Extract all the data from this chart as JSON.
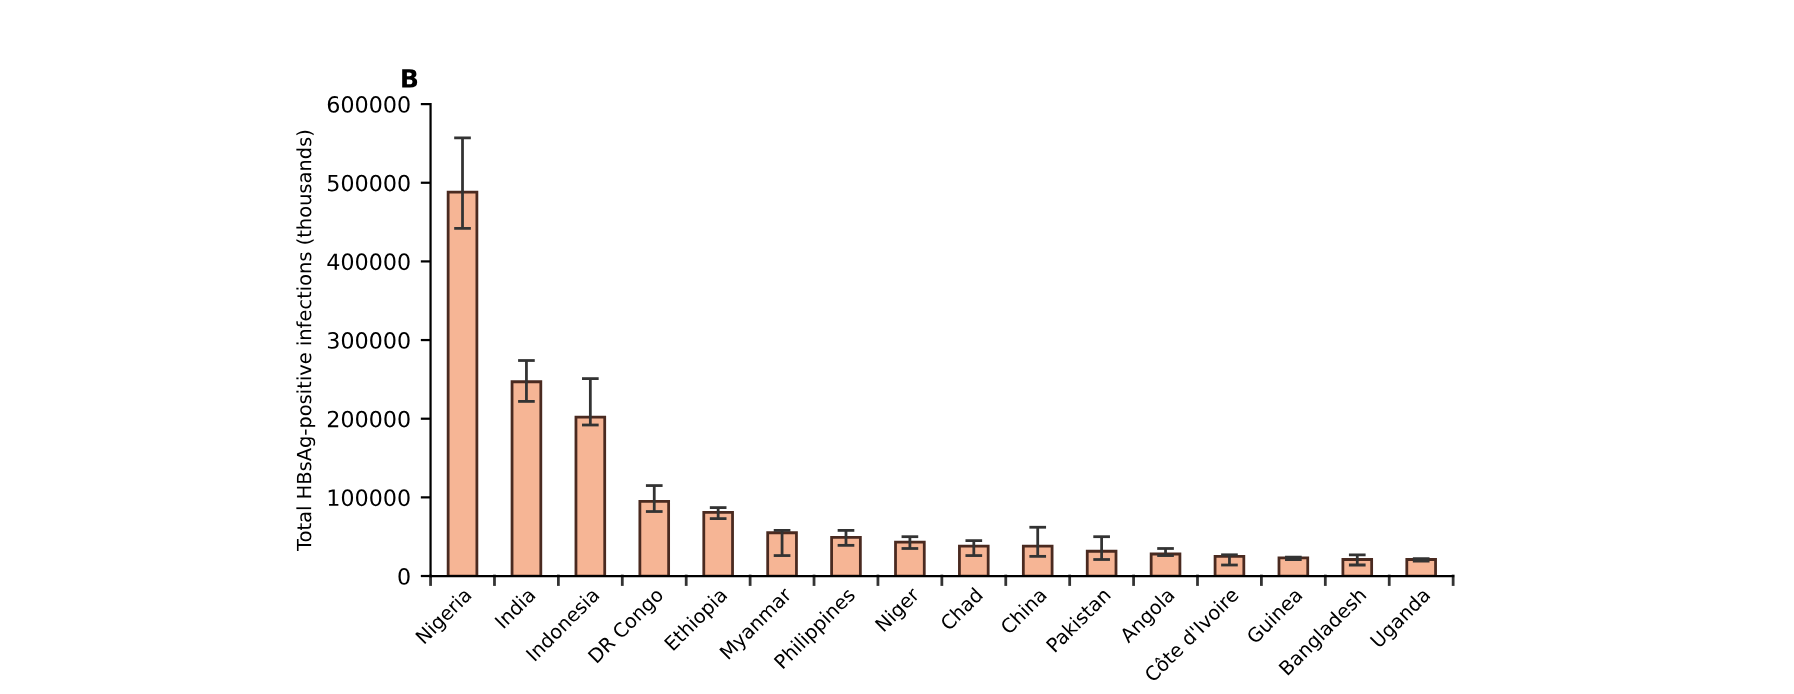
{
  "chart_data": {
    "type": "bar",
    "title": "B",
    "ylabel": "Total HBsAg-positive infections (thousands)",
    "categories": [
      "Nigeria",
      "India",
      "Indonesia",
      "DR Congo",
      "Ethiopia",
      "Myanmar",
      "Philippines",
      "Niger",
      "Chad",
      "China",
      "Pakistan",
      "Angola",
      "Côte d'Ivoire",
      "Guinea",
      "Bangladesh",
      "Uganda"
    ],
    "values": [
      488000,
      247000,
      202000,
      95000,
      81000,
      55000,
      49000,
      43000,
      38000,
      38000,
      31500,
      28000,
      25000,
      23000,
      21000,
      21000
    ],
    "errors": [
      [
        442000,
        557000
      ],
      [
        222000,
        274000
      ],
      [
        192000,
        251000
      ],
      [
        82000,
        115000
      ],
      [
        73000,
        87000
      ],
      [
        26000,
        58000
      ],
      [
        39000,
        58000
      ],
      [
        35000,
        50000
      ],
      [
        26000,
        45000
      ],
      [
        25000,
        62000
      ],
      [
        21000,
        50000
      ],
      [
        26000,
        35000
      ],
      [
        14000,
        27000
      ],
      [
        21000,
        24000
      ],
      [
        14000,
        27000
      ],
      [
        19000,
        22000
      ]
    ],
    "color": "#f6b595",
    "ylim": [
      0,
      600000
    ],
    "yticks": [
      0,
      100000,
      200000,
      300000,
      400000,
      500000,
      600000
    ],
    "grid": false,
    "legend": false
  }
}
